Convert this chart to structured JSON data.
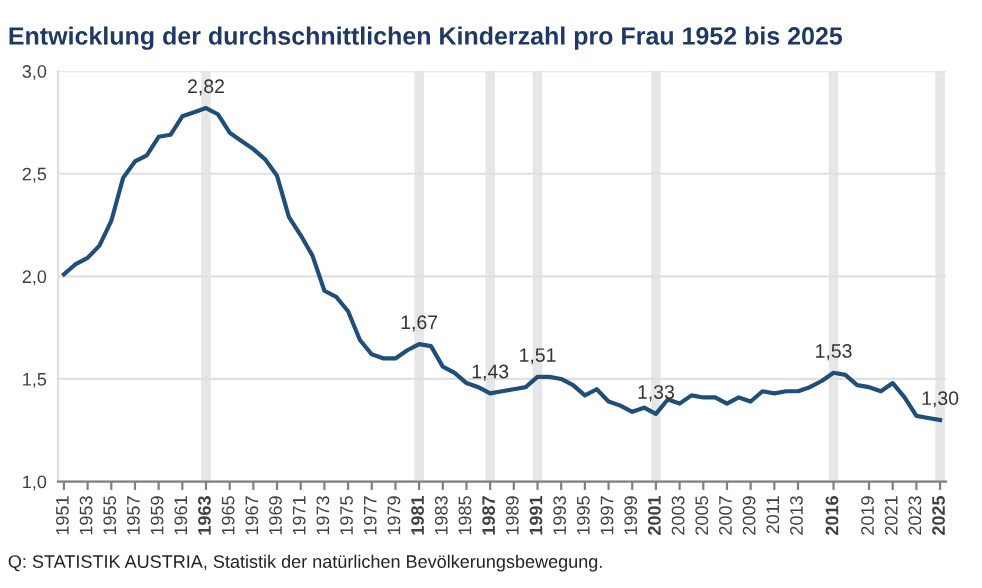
{
  "chart_data": {
    "type": "line",
    "title": "Entwicklung der durchschnittlichen Kinderzahl pro Frau 1952 bis 2025",
    "x": [
      1951,
      1952,
      1953,
      1954,
      1955,
      1956,
      1957,
      1958,
      1959,
      1960,
      1961,
      1962,
      1963,
      1964,
      1965,
      1966,
      1967,
      1968,
      1969,
      1970,
      1971,
      1972,
      1973,
      1974,
      1975,
      1976,
      1977,
      1978,
      1979,
      1980,
      1981,
      1982,
      1983,
      1984,
      1985,
      1986,
      1987,
      1988,
      1989,
      1990,
      1991,
      1992,
      1993,
      1994,
      1995,
      1996,
      1997,
      1998,
      1999,
      2000,
      2001,
      2002,
      2003,
      2004,
      2005,
      2006,
      2007,
      2008,
      2009,
      2010,
      2011,
      2012,
      2013,
      2014,
      2015,
      2016,
      2017,
      2018,
      2019,
      2020,
      2021,
      2022,
      2023,
      2024,
      2025
    ],
    "series": [
      {
        "color": "#1f4e79",
        "values": [
          2.01,
          2.06,
          2.09,
          2.15,
          2.27,
          2.48,
          2.56,
          2.59,
          2.68,
          2.69,
          2.78,
          2.8,
          2.82,
          2.79,
          2.7,
          2.66,
          2.62,
          2.57,
          2.49,
          2.29,
          2.2,
          2.1,
          1.93,
          1.9,
          1.83,
          1.69,
          1.62,
          1.6,
          1.6,
          1.64,
          1.67,
          1.66,
          1.56,
          1.53,
          1.48,
          1.46,
          1.43,
          1.44,
          1.45,
          1.46,
          1.51,
          1.51,
          1.5,
          1.47,
          1.42,
          1.45,
          1.39,
          1.37,
          1.34,
          1.36,
          1.33,
          1.4,
          1.38,
          1.42,
          1.41,
          1.41,
          1.38,
          1.41,
          1.39,
          1.44,
          1.43,
          1.44,
          1.44,
          1.46,
          1.49,
          1.53,
          1.52,
          1.47,
          1.46,
          1.44,
          1.48,
          1.41,
          1.32,
          1.31,
          1.3
        ]
      }
    ],
    "xlim": [
      1950.5,
      2025.5
    ],
    "xticks": [
      1951,
      1953,
      1955,
      1957,
      1959,
      1961,
      1963,
      1965,
      1967,
      1969,
      1971,
      1973,
      1975,
      1977,
      1979,
      1981,
      1983,
      1985,
      1987,
      1989,
      1991,
      1993,
      1995,
      1997,
      1999,
      2001,
      2003,
      2005,
      2007,
      2009,
      2011,
      2013,
      2016,
      2019,
      2021,
      2023,
      2025
    ],
    "ylim": [
      1.0,
      3.0
    ],
    "yticks": [
      {
        "value": 1.0,
        "label": "1,0"
      },
      {
        "value": 1.5,
        "label": "1,5"
      },
      {
        "value": 2.0,
        "label": "2,0"
      },
      {
        "value": 2.5,
        "label": "2,5"
      },
      {
        "value": 3.0,
        "label": "3,0"
      }
    ],
    "grid": "y",
    "marker": "none",
    "line_style": "solid",
    "bands": [
      {
        "axis": "x",
        "from": 1962.6,
        "to": 1963.4,
        "color": "#e6e6e6"
      },
      {
        "axis": "x",
        "from": 1980.6,
        "to": 1981.4,
        "color": "#e6e6e6"
      },
      {
        "axis": "x",
        "from": 1986.6,
        "to": 1987.4,
        "color": "#e6e6e6"
      },
      {
        "axis": "x",
        "from": 1990.6,
        "to": 1991.4,
        "color": "#e6e6e6"
      },
      {
        "axis": "x",
        "from": 2000.6,
        "to": 2001.4,
        "color": "#e6e6e6"
      },
      {
        "axis": "x",
        "from": 2015.6,
        "to": 2016.4,
        "color": "#e6e6e6"
      },
      {
        "axis": "x",
        "from": 2024.6,
        "to": 2025.4,
        "color": "#e6e6e6"
      }
    ],
    "annotations": [
      {
        "text": "2,82",
        "x": 1963,
        "y": 2.82
      },
      {
        "text": "1,67",
        "x": 1981,
        "y": 1.67
      },
      {
        "text": "1,43",
        "x": 1987,
        "y": 1.43
      },
      {
        "text": "1,51",
        "x": 1991,
        "y": 1.51
      },
      {
        "text": "1,33",
        "x": 2001,
        "y": 1.33
      },
      {
        "text": "1,53",
        "x": 2016,
        "y": 1.53
      },
      {
        "text": "1,30",
        "x": 2025,
        "y": 1.3
      },
      "Q: STATISTIK AUSTRIA, Statistik der natürlichen Bevölkerungsbewegung."
    ]
  }
}
